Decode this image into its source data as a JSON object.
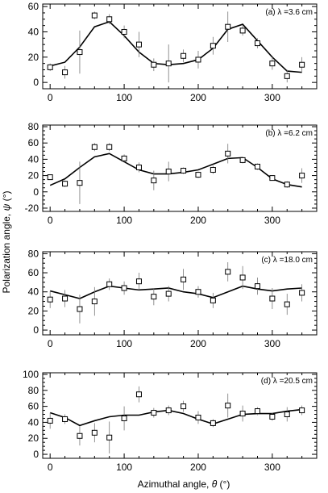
{
  "figure": {
    "xlabel_main": "Azimuthal angle, ",
    "xlabel_symbol": "θ",
    "xlabel_unit": " (°)",
    "ylabel_main": "Polarization angle, ",
    "ylabel_symbol": "ψ",
    "ylabel_unit": " (°)"
  },
  "chart_data": [
    {
      "type": "scatter",
      "label_prefix": "(a) λ",
      "label_value": "=3.6 cm",
      "xlim": [
        -10,
        360
      ],
      "ylim": [
        -5,
        62
      ],
      "yticks": [
        0,
        20,
        40,
        60
      ],
      "xticks": [
        0,
        100,
        200,
        300
      ],
      "points": [
        {
          "x": 0,
          "y": 12,
          "err": 3
        },
        {
          "x": 20,
          "y": 8,
          "err": 5
        },
        {
          "x": 40,
          "y": 24,
          "err": 17
        },
        {
          "x": 60,
          "y": 53,
          "err": 3
        },
        {
          "x": 80,
          "y": 50,
          "err": 4
        },
        {
          "x": 100,
          "y": 40,
          "err": 5
        },
        {
          "x": 120,
          "y": 30,
          "err": 10
        },
        {
          "x": 140,
          "y": 14,
          "err": 5
        },
        {
          "x": 160,
          "y": 15,
          "err": 15
        },
        {
          "x": 180,
          "y": 21,
          "err": 5
        },
        {
          "x": 200,
          "y": 18,
          "err": 7
        },
        {
          "x": 220,
          "y": 29,
          "err": 7
        },
        {
          "x": 240,
          "y": 44,
          "err": 12
        },
        {
          "x": 260,
          "y": 41,
          "err": 4
        },
        {
          "x": 280,
          "y": 31,
          "err": 4
        },
        {
          "x": 300,
          "y": 15,
          "err": 5
        },
        {
          "x": 320,
          "y": 5,
          "err": 5
        },
        {
          "x": 340,
          "y": 14,
          "err": 6
        }
      ],
      "model": {
        "x": [
          0,
          20,
          40,
          60,
          80,
          100,
          120,
          140,
          160,
          180,
          200,
          220,
          240,
          260,
          280,
          300,
          320,
          340
        ],
        "y": [
          13,
          16,
          28,
          44,
          48,
          37,
          24,
          15,
          14,
          15,
          18,
          27,
          42,
          46,
          33,
          20,
          9,
          8
        ]
      }
    },
    {
      "type": "scatter",
      "label_prefix": "(b) λ",
      "label_value": "=6.2 cm",
      "xlim": [
        -10,
        360
      ],
      "ylim": [
        -24,
        82
      ],
      "yticks": [
        -20,
        0,
        20,
        40,
        60,
        80
      ],
      "xticks": [
        0,
        100,
        200,
        300
      ],
      "points": [
        {
          "x": 0,
          "y": 18,
          "err": 3
        },
        {
          "x": 20,
          "y": 10,
          "err": 4
        },
        {
          "x": 40,
          "y": 11,
          "err": 26
        },
        {
          "x": 60,
          "y": 55,
          "err": 5
        },
        {
          "x": 80,
          "y": 55,
          "err": 5
        },
        {
          "x": 100,
          "y": 41,
          "err": 5
        },
        {
          "x": 120,
          "y": 30,
          "err": 6
        },
        {
          "x": 140,
          "y": 14,
          "err": 12
        },
        {
          "x": 160,
          "y": 25,
          "err": 12
        },
        {
          "x": 180,
          "y": 26,
          "err": 4
        },
        {
          "x": 200,
          "y": 21,
          "err": 4
        },
        {
          "x": 220,
          "y": 27,
          "err": 5
        },
        {
          "x": 240,
          "y": 47,
          "err": 12
        },
        {
          "x": 260,
          "y": 39,
          "err": 4
        },
        {
          "x": 280,
          "y": 31,
          "err": 4
        },
        {
          "x": 300,
          "y": 17,
          "err": 3
        },
        {
          "x": 320,
          "y": 9,
          "err": 4
        },
        {
          "x": 340,
          "y": 20,
          "err": 9
        }
      ],
      "model": {
        "x": [
          0,
          20,
          40,
          60,
          80,
          100,
          120,
          140,
          160,
          180,
          200,
          220,
          240,
          260,
          280,
          300,
          320,
          340
        ],
        "y": [
          8,
          16,
          30,
          43,
          47,
          37,
          27,
          22,
          22,
          24,
          27,
          34,
          41,
          42,
          30,
          16,
          9,
          6
        ]
      }
    },
    {
      "type": "scatter",
      "label_prefix": "(c) λ",
      "label_value": "=18.0 cm",
      "xlim": [
        -10,
        360
      ],
      "ylim": [
        -5,
        82
      ],
      "yticks": [
        0,
        20,
        40,
        60,
        80
      ],
      "xticks": [
        0,
        100,
        200,
        300
      ],
      "points": [
        {
          "x": 0,
          "y": 32,
          "err": 9
        },
        {
          "x": 20,
          "y": 33,
          "err": 9
        },
        {
          "x": 40,
          "y": 22,
          "err": 15
        },
        {
          "x": 60,
          "y": 30,
          "err": 15
        },
        {
          "x": 80,
          "y": 48,
          "err": 6
        },
        {
          "x": 100,
          "y": 44,
          "err": 7
        },
        {
          "x": 120,
          "y": 51,
          "err": 9
        },
        {
          "x": 140,
          "y": 35,
          "err": 9
        },
        {
          "x": 160,
          "y": 38,
          "err": 8
        },
        {
          "x": 180,
          "y": 53,
          "err": 11
        },
        {
          "x": 200,
          "y": 40,
          "err": 6
        },
        {
          "x": 220,
          "y": 31,
          "err": 8
        },
        {
          "x": 240,
          "y": 61,
          "err": 10
        },
        {
          "x": 260,
          "y": 55,
          "err": 12
        },
        {
          "x": 280,
          "y": 46,
          "err": 9
        },
        {
          "x": 300,
          "y": 33,
          "err": 11
        },
        {
          "x": 320,
          "y": 27,
          "err": 11
        },
        {
          "x": 340,
          "y": 39,
          "err": 9
        }
      ],
      "model": {
        "x": [
          0,
          20,
          40,
          60,
          80,
          100,
          120,
          140,
          160,
          180,
          200,
          220,
          240,
          260,
          280,
          300,
          320,
          340
        ],
        "y": [
          41,
          37,
          33,
          40,
          46,
          44,
          42,
          43,
          44,
          40,
          38,
          34,
          40,
          46,
          43,
          41,
          43,
          44
        ]
      }
    },
    {
      "type": "scatter",
      "label_prefix": "(d) λ",
      "label_value": "=20.5 cm",
      "xlim": [
        -10,
        360
      ],
      "ylim": [
        -5,
        102
      ],
      "yticks": [
        0,
        20,
        40,
        60,
        80,
        100
      ],
      "xticks": [
        0,
        100,
        200,
        300
      ],
      "points": [
        {
          "x": 0,
          "y": 42,
          "err": 10
        },
        {
          "x": 20,
          "y": 44,
          "err": 6
        },
        {
          "x": 40,
          "y": 23,
          "err": 12
        },
        {
          "x": 60,
          "y": 27,
          "err": 12
        },
        {
          "x": 80,
          "y": 21,
          "err": 20
        },
        {
          "x": 100,
          "y": 45,
          "err": 15
        },
        {
          "x": 120,
          "y": 75,
          "err": 10
        },
        {
          "x": 140,
          "y": 52,
          "err": 6
        },
        {
          "x": 160,
          "y": 55,
          "err": 6
        },
        {
          "x": 180,
          "y": 60,
          "err": 7
        },
        {
          "x": 200,
          "y": 46,
          "err": 8
        },
        {
          "x": 220,
          "y": 39,
          "err": 5
        },
        {
          "x": 240,
          "y": 61,
          "err": 15
        },
        {
          "x": 260,
          "y": 51,
          "err": 10
        },
        {
          "x": 280,
          "y": 54,
          "err": 5
        },
        {
          "x": 300,
          "y": 47,
          "err": 5
        },
        {
          "x": 320,
          "y": 50,
          "err": 9
        },
        {
          "x": 340,
          "y": 55,
          "err": 6
        }
      ],
      "model": {
        "x": [
          0,
          20,
          40,
          60,
          80,
          100,
          120,
          140,
          160,
          180,
          200,
          220,
          240,
          260,
          280,
          300,
          320,
          340
        ],
        "y": [
          52,
          46,
          36,
          42,
          47,
          49,
          49,
          53,
          55,
          51,
          44,
          38,
          44,
          50,
          51,
          51,
          54,
          56
        ]
      }
    }
  ]
}
